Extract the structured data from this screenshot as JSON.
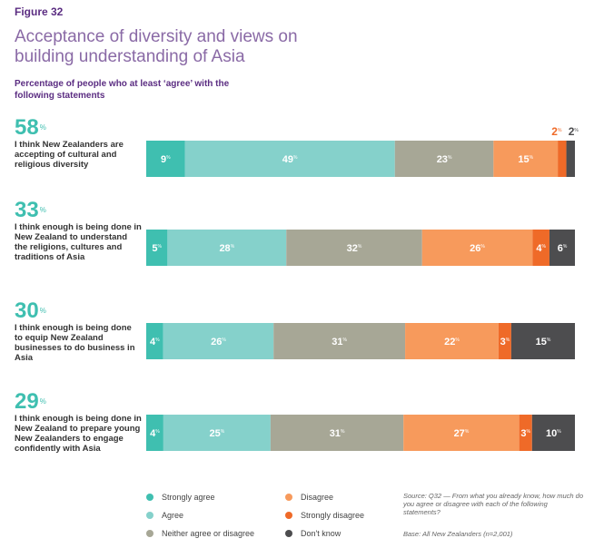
{
  "figure_label": "Figure 32",
  "title": "Acceptance of diversity and views on building understanding of Asia",
  "subtitle": "Percentage of people who at least ‘agree’ with the following statements",
  "source": "Source: Q32 — From what you already know, how much do you agree or disagree with each of the following statements?",
  "base": "Base: All New Zealanders (n=2,001)",
  "colors": {
    "strongly_agree": "#3fbfb0",
    "agree": "#85d1cb",
    "neither": "#a7a796",
    "disagree": "#f79a5c",
    "strongly_disagree": "#ef6a28",
    "dont_know": "#4d4d4f"
  },
  "legend": [
    {
      "key": "strongly_agree",
      "label": "Strongly agree"
    },
    {
      "key": "agree",
      "label": "Agree"
    },
    {
      "key": "neither",
      "label": "Neither agree or disagree"
    },
    {
      "key": "disagree",
      "label": "Disagree"
    },
    {
      "key": "strongly_disagree",
      "label": "Strongly disagree"
    },
    {
      "key": "dont_know",
      "label": "Don't know"
    }
  ],
  "chart_data": {
    "type": "bar",
    "stacked": true,
    "orientation": "horizontal",
    "unit": "%",
    "categories": [
      "I think New Zealanders are accepting of cultural and religious diversity",
      "I think enough is being done in New Zealand to understand the religions, cultures and traditions of Asia",
      "I think enough is being done to equip New Zealand businesses to do business in Asia",
      "I think enough is being done in New Zealand to prepare young New Zealanders to engage confidently with Asia"
    ],
    "agree_totals": [
      58,
      33,
      30,
      29
    ],
    "series": [
      {
        "name": "Strongly agree",
        "values": [
          9,
          5,
          4,
          4
        ]
      },
      {
        "name": "Agree",
        "values": [
          49,
          28,
          26,
          25
        ]
      },
      {
        "name": "Neither agree or disagree",
        "values": [
          23,
          32,
          31,
          31
        ]
      },
      {
        "name": "Disagree",
        "values": [
          15,
          26,
          22,
          27
        ]
      },
      {
        "name": "Strongly disagree",
        "values": [
          2,
          4,
          3,
          3
        ]
      },
      {
        "name": "Don't know",
        "values": [
          2,
          6,
          15,
          10
        ]
      }
    ]
  }
}
